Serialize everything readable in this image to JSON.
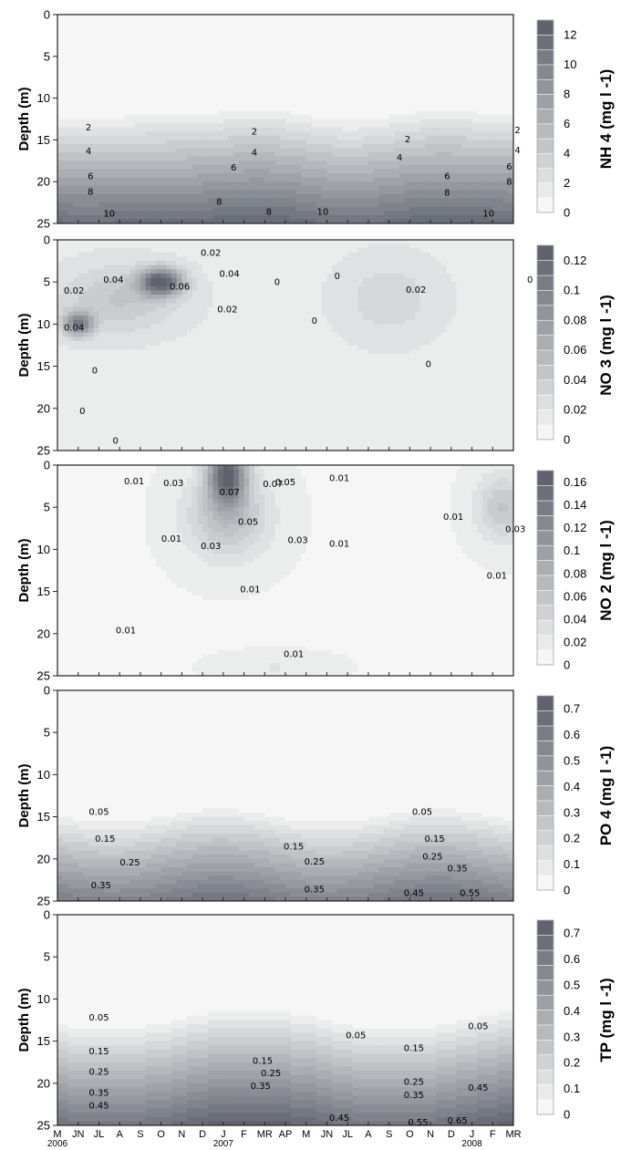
{
  "chart_data": [
    {
      "type": "heatmap",
      "variable": "NH 4",
      "colorbar_label": "NH 4 (mg l -1)",
      "ylabel": "Depth (m)",
      "ylim": [
        25,
        0
      ],
      "y_ticks": [
        "0",
        "5",
        "10",
        "15",
        "20",
        "25"
      ],
      "colorbar_ticks": [
        "0",
        "2",
        "4",
        "6",
        "8",
        "10",
        "12"
      ],
      "colorbar_range": [
        0,
        13
      ],
      "contour_labels": [
        {
          "text": "2",
          "x": 1.5,
          "y": 13.5
        },
        {
          "text": "4",
          "x": 1.5,
          "y": 16.3
        },
        {
          "text": "6",
          "x": 1.6,
          "y": 19.3
        },
        {
          "text": "8",
          "x": 1.6,
          "y": 21.2
        },
        {
          "text": "10",
          "x": 2.5,
          "y": 23.8
        },
        {
          "text": "2",
          "x": 9.5,
          "y": 14
        },
        {
          "text": "4",
          "x": 9.5,
          "y": 16.5
        },
        {
          "text": "6",
          "x": 8.5,
          "y": 18.3
        },
        {
          "text": "8",
          "x": 7.8,
          "y": 22.4
        },
        {
          "text": "8",
          "x": 10.2,
          "y": 23.6
        },
        {
          "text": "10",
          "x": 12.8,
          "y": 23.6
        },
        {
          "text": "4",
          "x": 16.5,
          "y": 17.1
        },
        {
          "text": "2",
          "x": 16.9,
          "y": 14.9
        },
        {
          "text": "6",
          "x": 18.8,
          "y": 19.3
        },
        {
          "text": "8",
          "x": 18.8,
          "y": 21.3
        },
        {
          "text": "2",
          "x": 22.2,
          "y": 13.8
        },
        {
          "text": "4",
          "x": 22.2,
          "y": 16.2
        },
        {
          "text": "6",
          "x": 21.8,
          "y": 18.2
        },
        {
          "text": "8",
          "x": 21.8,
          "y": 20
        },
        {
          "text": "10",
          "x": 20.8,
          "y": 23.8
        }
      ]
    },
    {
      "type": "heatmap",
      "variable": "NO 3",
      "colorbar_label": "NO 3 (mg l -1)",
      "ylabel": "Depth (m)",
      "ylim": [
        25,
        0
      ],
      "y_ticks": [
        "0",
        "5",
        "10",
        "15",
        "20",
        "25"
      ],
      "colorbar_ticks": [
        "0",
        "0.02",
        "0.04",
        "0.06",
        "0.08",
        "0.1",
        "0.12"
      ],
      "colorbar_range": [
        0,
        0.13
      ],
      "contour_labels": [
        {
          "text": "0.02",
          "x": 7.4,
          "y": 1.5
        },
        {
          "text": "0.04",
          "x": 2.7,
          "y": 4.7
        },
        {
          "text": "0.04",
          "x": 8.3,
          "y": 4
        },
        {
          "text": "0.06",
          "x": 5.9,
          "y": 5.5
        },
        {
          "text": "0.02",
          "x": 0.8,
          "y": 6
        },
        {
          "text": "0.02",
          "x": 8.2,
          "y": 8.2
        },
        {
          "text": "0.04",
          "x": 0.8,
          "y": 10.4
        },
        {
          "text": "0",
          "x": 10.6,
          "y": 5
        },
        {
          "text": "0",
          "x": 13.5,
          "y": 4.3
        },
        {
          "text": "0",
          "x": 12.4,
          "y": 9.6
        },
        {
          "text": "0.02",
          "x": 17.3,
          "y": 5.9
        },
        {
          "text": "0",
          "x": 22.8,
          "y": 4.7
        },
        {
          "text": "0",
          "x": 1.8,
          "y": 15.5
        },
        {
          "text": "0",
          "x": 17.9,
          "y": 14.7
        },
        {
          "text": "0",
          "x": 1.2,
          "y": 20.3
        },
        {
          "text": "0",
          "x": 2.8,
          "y": 23.8
        }
      ]
    },
    {
      "type": "heatmap",
      "variable": "NO 2",
      "colorbar_label": "NO 2 (mg l -1)",
      "ylabel": "Depth (m)",
      "ylim": [
        25,
        0
      ],
      "y_ticks": [
        "0",
        "5",
        "10",
        "15",
        "20",
        "25"
      ],
      "colorbar_ticks": [
        "0",
        "0.02",
        "0.04",
        "0.06",
        "0.08",
        "0.1",
        "0.12",
        "0.14",
        "0.16"
      ],
      "colorbar_range": [
        0,
        0.17
      ],
      "contour_labels": [
        {
          "text": "0.01",
          "x": 3.7,
          "y": 1.9
        },
        {
          "text": "0.03",
          "x": 5.6,
          "y": 2.1
        },
        {
          "text": "0.07",
          "x": 8.3,
          "y": 3.2
        },
        {
          "text": "0.07",
          "x": 10.4,
          "y": 2.2
        },
        {
          "text": "0.05",
          "x": 11,
          "y": 2
        },
        {
          "text": "0.01",
          "x": 13.6,
          "y": 1.5
        },
        {
          "text": "0.05",
          "x": 9.2,
          "y": 6.7
        },
        {
          "text": "0.01",
          "x": 5.5,
          "y": 8.7
        },
        {
          "text": "0.03",
          "x": 7.4,
          "y": 9.6
        },
        {
          "text": "0.03",
          "x": 11.6,
          "y": 8.9
        },
        {
          "text": "0.01",
          "x": 13.6,
          "y": 9.3
        },
        {
          "text": "0.01",
          "x": 9.3,
          "y": 14.7
        },
        {
          "text": "0.01",
          "x": 3.3,
          "y": 19.6
        },
        {
          "text": "0.01",
          "x": 11.4,
          "y": 22.4
        },
        {
          "text": "0.01",
          "x": 19.1,
          "y": 6.1
        },
        {
          "text": "0.03",
          "x": 22.1,
          "y": 7.6
        },
        {
          "text": "0.01",
          "x": 21.2,
          "y": 13.1
        }
      ]
    },
    {
      "type": "heatmap",
      "variable": "PO 4",
      "colorbar_label": "PO 4 (mg l -1)",
      "ylabel": "Depth (m)",
      "ylim": [
        25,
        0
      ],
      "y_ticks": [
        "0",
        "5",
        "10",
        "15",
        "20",
        "25"
      ],
      "colorbar_ticks": [
        "0",
        "0.1",
        "0.2",
        "0.3",
        "0.4",
        "0.5",
        "0.6",
        "0.7"
      ],
      "colorbar_range": [
        0,
        0.75
      ],
      "contour_labels": [
        {
          "text": "0.05",
          "x": 2,
          "y": 14.4
        },
        {
          "text": "0.15",
          "x": 2.3,
          "y": 17.6
        },
        {
          "text": "0.25",
          "x": 3.5,
          "y": 20.4
        },
        {
          "text": "0.35",
          "x": 2.1,
          "y": 23.1
        },
        {
          "text": "0.15",
          "x": 11.4,
          "y": 18.5
        },
        {
          "text": "0.25",
          "x": 12.4,
          "y": 20.3
        },
        {
          "text": "0.35",
          "x": 12.4,
          "y": 23.6
        },
        {
          "text": "0.05",
          "x": 17.6,
          "y": 14.4
        },
        {
          "text": "0.15",
          "x": 18.2,
          "y": 17.6
        },
        {
          "text": "0.25",
          "x": 18.1,
          "y": 19.7
        },
        {
          "text": "0.35",
          "x": 19.3,
          "y": 21.1
        },
        {
          "text": "0.45",
          "x": 17.2,
          "y": 24
        },
        {
          "text": "0.55",
          "x": 19.9,
          "y": 24
        }
      ]
    },
    {
      "type": "heatmap",
      "variable": "TP",
      "colorbar_label": "TP (mg l -1)",
      "ylabel": "Depth (m)",
      "ylim": [
        25,
        0
      ],
      "y_ticks": [
        "0",
        "5",
        "10",
        "15",
        "20",
        "25"
      ],
      "x_ticks": [
        "M",
        "JN",
        "JL",
        "A",
        "S",
        "O",
        "N",
        "D",
        "J",
        "F",
        "MR",
        "AP",
        "M",
        "JN",
        "JL",
        "A",
        "S",
        "O",
        "N",
        "D",
        "J",
        "F",
        "MR"
      ],
      "x_years": [
        {
          "text": "2006",
          "x": 0
        },
        {
          "text": "2007",
          "x": 8
        },
        {
          "text": "2008",
          "x": 20
        }
      ],
      "colorbar_ticks": [
        "0",
        "0.1",
        "0.2",
        "0.3",
        "0.4",
        "0.5",
        "0.6",
        "0.7"
      ],
      "colorbar_range": [
        0,
        0.75
      ],
      "contour_labels": [
        {
          "text": "0.05",
          "x": 2,
          "y": 12.2
        },
        {
          "text": "0.15",
          "x": 2,
          "y": 16.2
        },
        {
          "text": "0.25",
          "x": 2,
          "y": 18.6
        },
        {
          "text": "0.35",
          "x": 2,
          "y": 21.1
        },
        {
          "text": "0.45",
          "x": 2,
          "y": 22.6
        },
        {
          "text": "0.15",
          "x": 9.9,
          "y": 17.3
        },
        {
          "text": "0.25",
          "x": 10.3,
          "y": 18.8
        },
        {
          "text": "0.35",
          "x": 9.8,
          "y": 20.3
        },
        {
          "text": "0.45",
          "x": 13.6,
          "y": 24.1
        },
        {
          "text": "0.05",
          "x": 14.4,
          "y": 14.3
        },
        {
          "text": "0.15",
          "x": 17.2,
          "y": 15.8
        },
        {
          "text": "0.25",
          "x": 17.2,
          "y": 19.8
        },
        {
          "text": "0.35",
          "x": 17.2,
          "y": 21.4
        },
        {
          "text": "0.55",
          "x": 17.4,
          "y": 24.6
        },
        {
          "text": "0.65",
          "x": 19.3,
          "y": 24.4
        },
        {
          "text": "0.45",
          "x": 20.3,
          "y": 20.5
        },
        {
          "text": "0.05",
          "x": 20.3,
          "y": 13.2
        }
      ]
    }
  ]
}
